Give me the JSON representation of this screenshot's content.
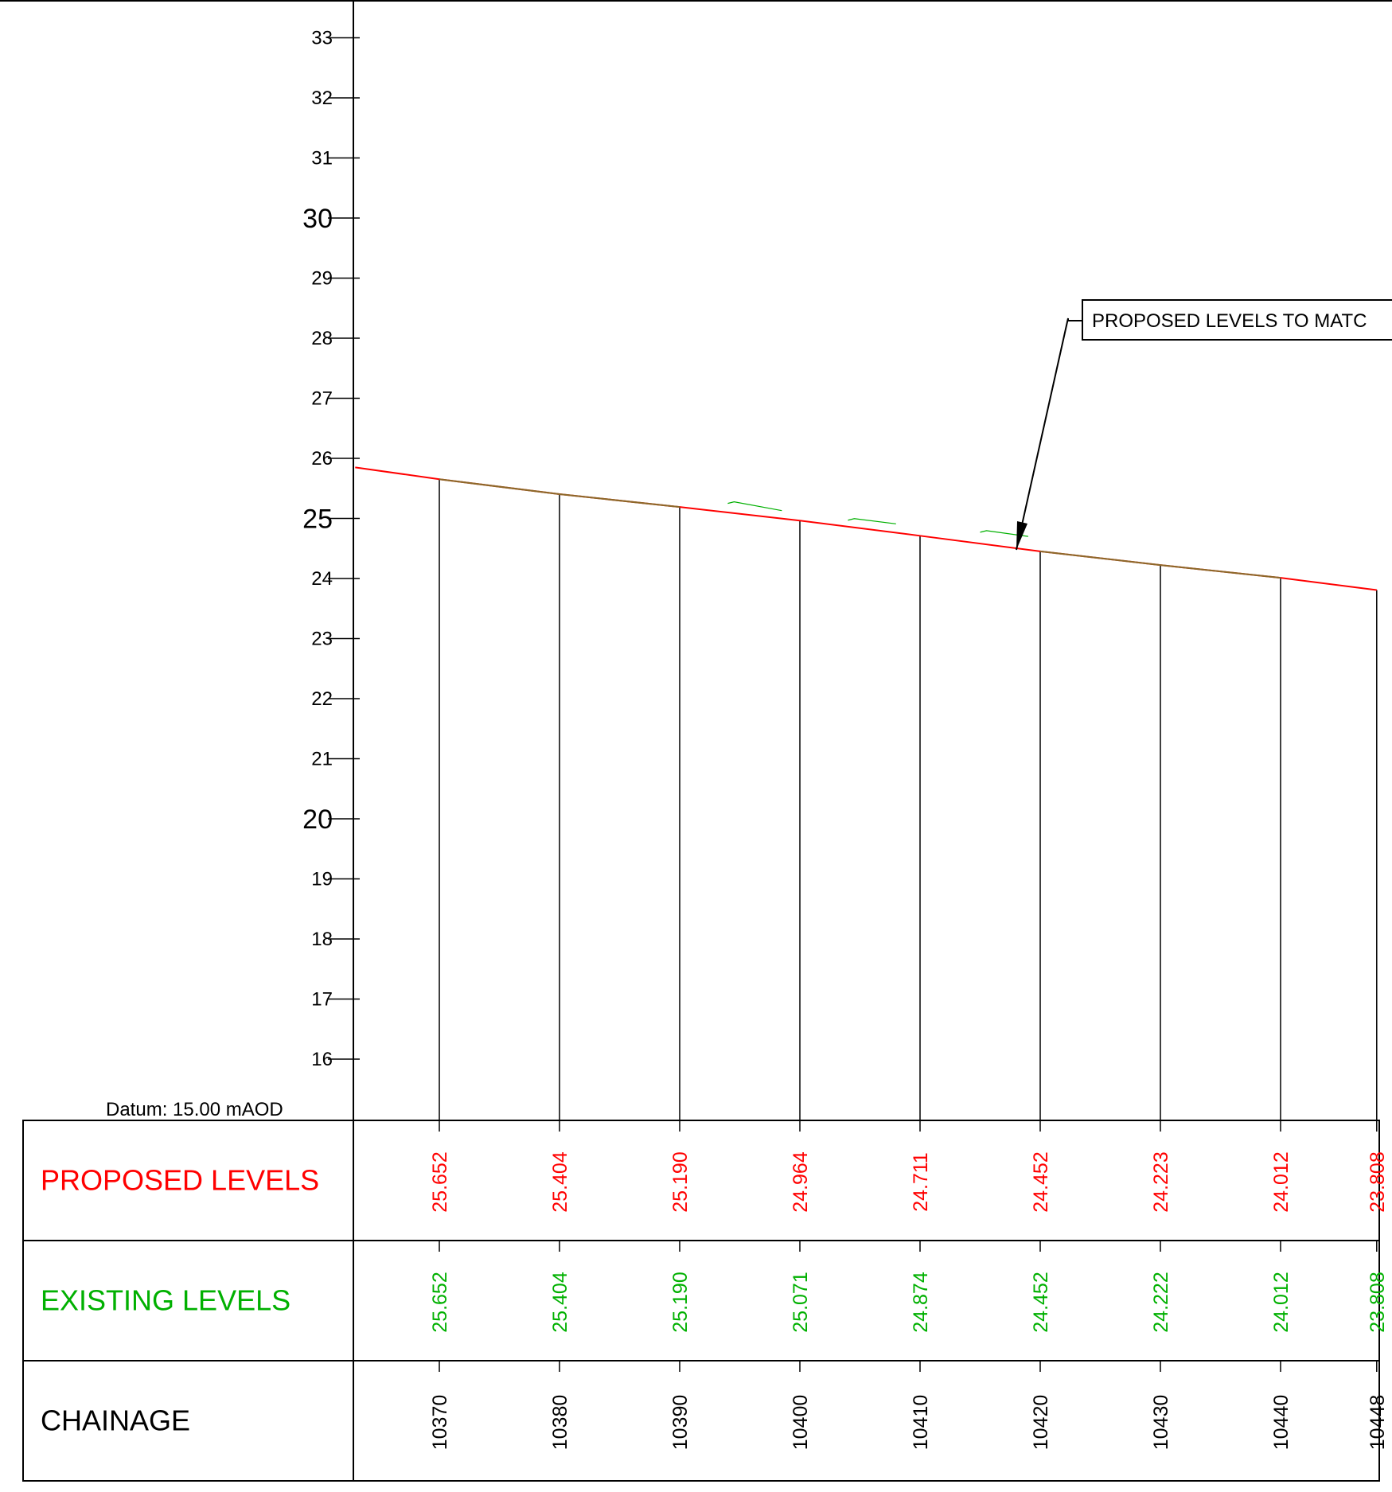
{
  "datum": {
    "label": "Datum: 15.00 mAOD"
  },
  "y_axis": {
    "ticks": [
      "16",
      "17",
      "18",
      "19",
      "20",
      "21",
      "22",
      "23",
      "24",
      "25",
      "26",
      "27",
      "28",
      "29",
      "30",
      "31",
      "32",
      "33"
    ],
    "major_ticks": [
      "20",
      "25",
      "30"
    ]
  },
  "callout": {
    "text": "PROPOSED LEVELS TO MATC"
  },
  "table": {
    "rows": [
      {
        "key": "proposed",
        "label": "PROPOSED LEVELS",
        "color": "#ff0000"
      },
      {
        "key": "existing",
        "label": "EXISTING LEVELS",
        "color": "#00b000"
      },
      {
        "key": "chainage",
        "label": "CHAINAGE",
        "color": "#000000"
      }
    ]
  },
  "colors": {
    "proposed": "#ff0000",
    "existing": "#00b000",
    "matched_line": "#8a6a2a",
    "linework": "#000000"
  },
  "chart_data": {
    "type": "line",
    "datum": 15.0,
    "y_range": [
      15,
      33.5
    ],
    "x_range": [
      10363,
      10448
    ],
    "chainage": [
      "10370",
      "10380",
      "10390",
      "10400",
      "10410",
      "10420",
      "10430",
      "10440",
      "10448"
    ],
    "proposed_levels": [
      "25.652",
      "25.404",
      "25.190",
      "24.964",
      "24.711",
      "24.452",
      "24.223",
      "24.012",
      "23.808"
    ],
    "existing_levels": [
      "25.652",
      "25.404",
      "25.190",
      "25.071",
      "24.874",
      "24.452",
      "24.222",
      "24.012",
      "23.808"
    ],
    "series": [
      {
        "key": "proposed",
        "points": [
          [
            10363,
            25.85
          ],
          [
            10370,
            25.652
          ],
          [
            10380,
            25.404
          ],
          [
            10390,
            25.19
          ],
          [
            10400,
            24.964
          ],
          [
            10410,
            24.711
          ],
          [
            10420,
            24.452
          ],
          [
            10430,
            24.223
          ],
          [
            10440,
            24.012
          ],
          [
            10448,
            23.808
          ]
        ]
      },
      {
        "key": "existing_fragments",
        "points": [
          [
            10394,
            25.25
          ],
          [
            10398.5,
            25.13
          ],
          [
            10404,
            24.97
          ],
          [
            10415,
            24.77
          ]
        ]
      }
    ]
  }
}
